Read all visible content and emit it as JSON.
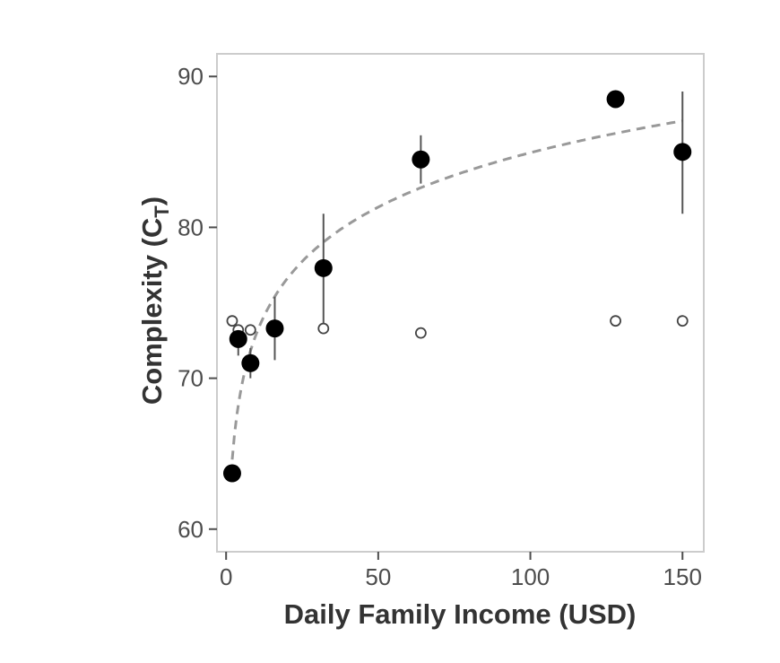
{
  "chart_data": {
    "type": "scatter",
    "title": "",
    "xlabel": "Daily Family Income (USD)",
    "ylabel_main": "Complexity (C",
    "ylabel_sub": "T",
    "ylabel_close": ")",
    "xlim": [
      -3,
      157
    ],
    "ylim": [
      58.5,
      91.5
    ],
    "xticks": [
      0,
      50,
      100,
      150
    ],
    "yticks": [
      60,
      70,
      80,
      90
    ],
    "grid": false,
    "legend": "none",
    "series": [
      {
        "style": "filled",
        "color": "#000000",
        "points": [
          {
            "x": 2,
            "y": 63.7,
            "err_low": 63.7,
            "err_high": 63.7
          },
          {
            "x": 4,
            "y": 72.6,
            "err_low": 71.5,
            "err_high": 73.5
          },
          {
            "x": 8,
            "y": 71.0,
            "err_low": 70.0,
            "err_high": 72.0
          },
          {
            "x": 16,
            "y": 73.3,
            "err_low": 71.2,
            "err_high": 75.4
          },
          {
            "x": 32,
            "y": 77.3,
            "err_low": 73.5,
            "err_high": 80.9
          },
          {
            "x": 64,
            "y": 84.5,
            "err_low": 82.9,
            "err_high": 86.1
          },
          {
            "x": 128,
            "y": 88.5,
            "err_low": 88.5,
            "err_high": 88.5
          },
          {
            "x": 150,
            "y": 85.0,
            "err_low": 80.9,
            "err_high": 89.0
          }
        ]
      },
      {
        "style": "open",
        "color": "#444444",
        "points": [
          {
            "x": 2,
            "y": 73.8
          },
          {
            "x": 4,
            "y": 73.2
          },
          {
            "x": 8,
            "y": 73.2
          },
          {
            "x": 16,
            "y": 73.3
          },
          {
            "x": 32,
            "y": 73.3
          },
          {
            "x": 64,
            "y": 73.0
          },
          {
            "x": 128,
            "y": 73.8
          },
          {
            "x": 150,
            "y": 73.8
          }
        ]
      }
    ],
    "trendline": {
      "style": "dashed",
      "color": "#999999",
      "model": "logarithmic",
      "a": 61.0,
      "b": 5.2
    }
  }
}
